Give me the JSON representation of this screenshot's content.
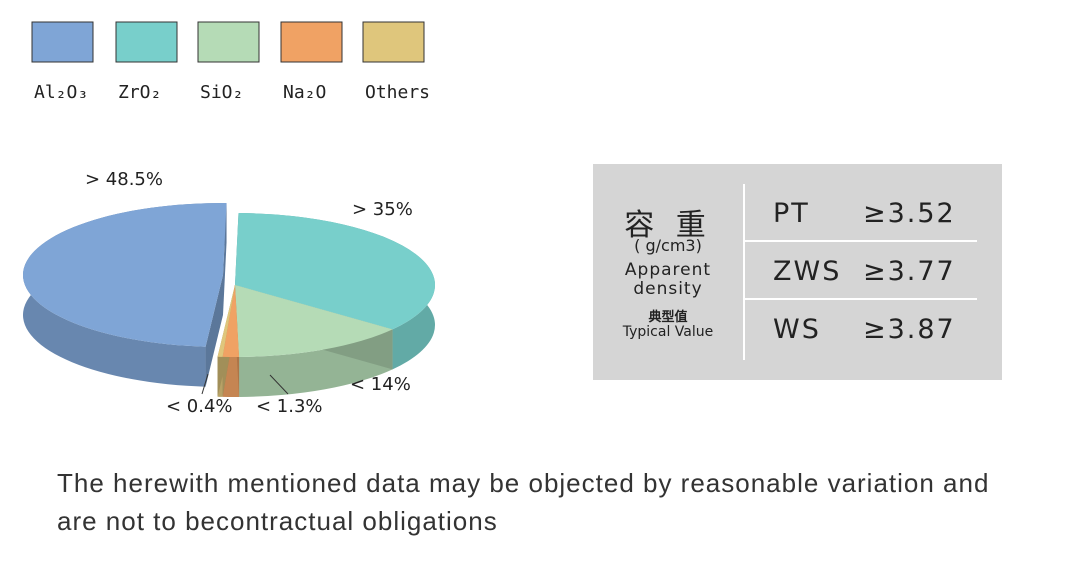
{
  "chart_data": {
    "type": "pie",
    "series": [
      {
        "name": "Al₂O₃",
        "color": "#7fa5d6",
        "values": [
          48.5
        ],
        "value_labels": [
          "> 48.5%"
        ]
      },
      {
        "name": "ZrO₂",
        "color": "#78cfcb",
        "values": [
          35
        ],
        "value_labels": [
          "> 35%"
        ]
      },
      {
        "name": "SiO₂",
        "color": "#b5dbb6",
        "values": [
          14
        ],
        "value_labels": [
          "< 14%"
        ]
      },
      {
        "name": "Na₂O",
        "color": "#f0a264",
        "values": [
          1.3
        ],
        "value_labels": [
          "< 1.3%"
        ]
      },
      {
        "name": "Others",
        "color": "#dfc67c",
        "values": [
          0.4
        ],
        "value_labels": [
          "< 0.4%"
        ]
      }
    ]
  },
  "table": {
    "title": "容 重",
    "unit": "( g/cm3)",
    "label_en": [
      "Apparent",
      "density"
    ],
    "label_cn": "典型值",
    "label_typical": "Typical Value",
    "rows": [
      [
        "PT",
        "≥3.52"
      ],
      [
        "ZWS",
        "≥3.77"
      ],
      [
        "WS",
        "≥3.87"
      ]
    ]
  },
  "footnote": "The herewith mentioned data may be objected by reasonable variation and are not to becontractual obligations"
}
